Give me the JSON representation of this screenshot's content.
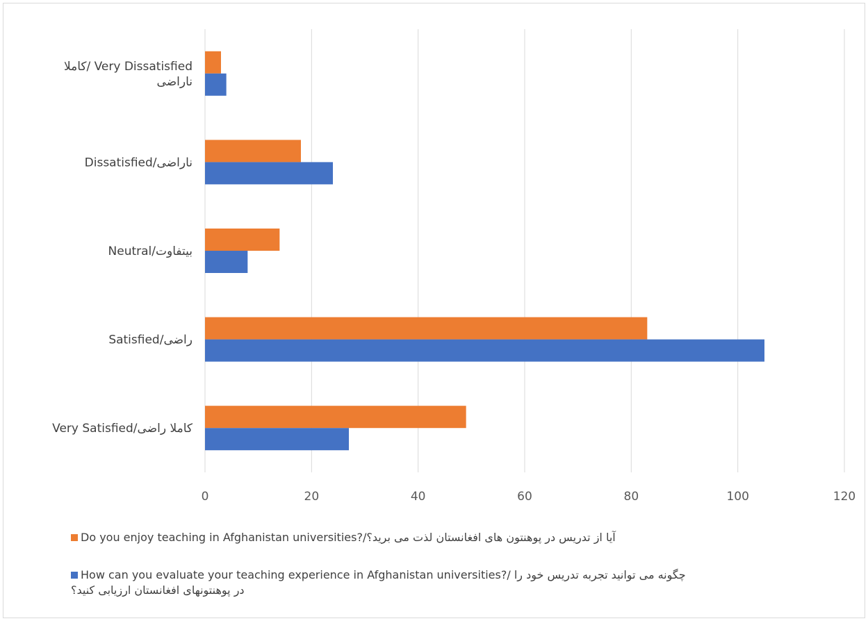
{
  "chart_data": {
    "type": "bar",
    "orientation": "horizontal",
    "categories": [
      "Very Satisfied/کاملا راضی",
      "Satisfied/راضی",
      "Neutral/بیتفاوت",
      "Dissatisfied/ناراضی",
      "Very Dissatisfied/ کاملا ناراضی"
    ],
    "category_label_lines": [
      [
        "Very Satisfied/کاملا راضی"
      ],
      [
        "Satisfied/راضی"
      ],
      [
        "Neutral/بیتفاوت"
      ],
      [
        "Dissatisfied/ناراضی"
      ],
      [
        "کاملا/ Very Dissatisfied",
        "ناراضی"
      ]
    ],
    "series": [
      {
        "name": "How can you evaluate your teaching experience in Afghanistan universities?/ چگونه می توانید تجربه تدریس خود را در پوهنتونهای افغانستان ارزیابی کنید؟",
        "color": "#4472C4",
        "values": [
          27,
          105,
          8,
          24,
          4
        ]
      },
      {
        "name": "Do you enjoy teaching in Afghanistan universities?/آیا از تدریس در پوهنتون های افغانستان لذت می برید؟",
        "color": "#ED7D31",
        "values": [
          49,
          83,
          14,
          18,
          3
        ]
      }
    ],
    "xlim": [
      0,
      120
    ],
    "xticks": [
      0,
      20,
      40,
      60,
      80,
      100,
      120
    ],
    "grid": true,
    "legend_position": "bottom",
    "title": "",
    "xlabel": "",
    "ylabel": ""
  },
  "legend": [
    {
      "color": "#ED7D31",
      "lines": [
        "Do you enjoy teaching in Afghanistan universities?/آیا از تدریس در پوهنتون های افغانستان لذت می برید؟"
      ]
    },
    {
      "color": "#4472C4",
      "lines": [
        "How can you evaluate your teaching experience in Afghanistan universities?/ چگونه می توانید تجربه تدریس خود را",
        "در پوهنتونهای افغانستان ارزیابی کنید؟"
      ]
    }
  ]
}
